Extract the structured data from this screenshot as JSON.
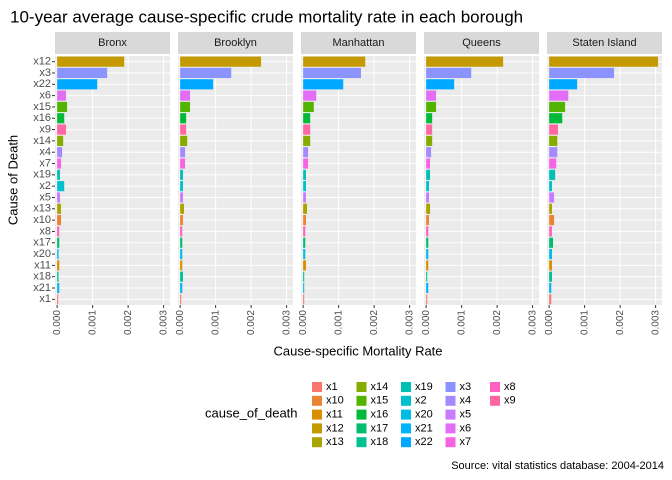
{
  "chart_data": {
    "type": "bar",
    "orientation": "horizontal",
    "title": "10-year average cause-specific crude mortality rate in each borough",
    "xlabel": "Cause-specific Mortality Rate",
    "ylabel": "Cause of Death",
    "caption": "Source: vital statistics database: 2004-2014",
    "categories": [
      "x12",
      "x3",
      "x22",
      "x6",
      "x15",
      "x16",
      "x9",
      "x14",
      "x4",
      "x7",
      "x19",
      "x2",
      "x5",
      "x13",
      "x10",
      "x8",
      "x17",
      "x20",
      "x11",
      "x18",
      "x21",
      "x1"
    ],
    "series": [
      {
        "name": "Bronx",
        "values": [
          0.00189,
          0.00141,
          0.00113,
          0.00025,
          0.00028,
          0.0002,
          0.00025,
          0.00017,
          0.00014,
          0.00011,
          8e-05,
          0.0002,
          8e-05,
          0.00011,
          0.00011,
          6e-05,
          6e-05,
          4e-05,
          6e-05,
          4e-05,
          6e-05,
          3e-05
        ]
      },
      {
        "name": "Brooklyn",
        "values": [
          0.00228,
          0.00144,
          0.00093,
          0.00028,
          0.00028,
          0.00017,
          0.00017,
          0.0002,
          0.00014,
          0.00014,
          8e-05,
          8e-05,
          8e-05,
          0.00011,
          8e-05,
          6e-05,
          6e-05,
          6e-05,
          6e-05,
          8e-05,
          6e-05,
          3e-05
        ]
      },
      {
        "name": "Manhattan",
        "values": [
          0.00175,
          0.00163,
          0.00113,
          0.00037,
          0.0003,
          0.0002,
          0.0002,
          0.0002,
          0.00014,
          0.00014,
          8e-05,
          8e-05,
          8e-05,
          0.00011,
          8e-05,
          6e-05,
          6e-05,
          6e-05,
          8e-05,
          3e-05,
          3e-05,
          3e-05
        ]
      },
      {
        "name": "Queens",
        "values": [
          0.00217,
          0.00127,
          0.00079,
          0.00028,
          0.00028,
          0.00017,
          0.00017,
          0.00017,
          0.00014,
          0.00011,
          0.00011,
          8e-05,
          8e-05,
          0.00011,
          8e-05,
          6e-05,
          6e-05,
          6e-05,
          6e-05,
          3e-05,
          6e-05,
          3e-05
        ]
      },
      {
        "name": "Staten Island",
        "values": [
          0.00307,
          0.00183,
          0.00079,
          0.00054,
          0.00045,
          0.00037,
          0.00025,
          0.00023,
          0.00023,
          0.0002,
          0.00017,
          8e-05,
          0.00014,
          8e-05,
          0.00014,
          8e-05,
          0.00011,
          8e-05,
          8e-05,
          8e-05,
          6e-05,
          6e-05
        ]
      }
    ],
    "xlim": [
      -6e-05,
      0.00318
    ],
    "xticks": [
      {
        "value": 0,
        "label": "0.000"
      },
      {
        "value": 0.001,
        "label": "0.001"
      },
      {
        "value": 0.002,
        "label": "0.002"
      },
      {
        "value": 0.003,
        "label": "0.003"
      }
    ],
    "grid": true,
    "legend": {
      "title": "cause_of_death",
      "position": "bottom",
      "items": [
        {
          "name": "x1",
          "color": "#F8766D"
        },
        {
          "name": "x10",
          "color": "#EB8335"
        },
        {
          "name": "x11",
          "color": "#DA8F00"
        },
        {
          "name": "x12",
          "color": "#C49A00"
        },
        {
          "name": "x13",
          "color": "#A9A400"
        },
        {
          "name": "x14",
          "color": "#86AC00"
        },
        {
          "name": "x15",
          "color": "#53B400"
        },
        {
          "name": "x16",
          "color": "#00BA38"
        },
        {
          "name": "x17",
          "color": "#00BE6D"
        },
        {
          "name": "x18",
          "color": "#00C094"
        },
        {
          "name": "x19",
          "color": "#00C1B3"
        },
        {
          "name": "x2",
          "color": "#00BFCE"
        },
        {
          "name": "x20",
          "color": "#00BBE6"
        },
        {
          "name": "x21",
          "color": "#00B4F7"
        },
        {
          "name": "x22",
          "color": "#00A9FF"
        },
        {
          "name": "x3",
          "color": "#8B93FF"
        },
        {
          "name": "x4",
          "color": "#A58AFF"
        },
        {
          "name": "x5",
          "color": "#C77CFF"
        },
        {
          "name": "x6",
          "color": "#E26EF7"
        },
        {
          "name": "x7",
          "color": "#F564E3"
        },
        {
          "name": "x8",
          "color": "#FF61C3"
        },
        {
          "name": "x9",
          "color": "#FF67A4"
        }
      ]
    }
  }
}
